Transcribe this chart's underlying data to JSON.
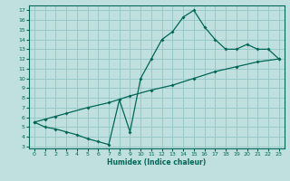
{
  "xlabel": "Humidex (Indice chaleur)",
  "bg_color": "#c0e0e0",
  "grid_color": "#98c8c8",
  "line_color": "#006655",
  "xlim": [
    -0.5,
    23.5
  ],
  "ylim": [
    2.8,
    17.5
  ],
  "xticks": [
    0,
    1,
    2,
    3,
    4,
    5,
    6,
    7,
    8,
    9,
    10,
    11,
    12,
    13,
    14,
    15,
    16,
    17,
    18,
    19,
    20,
    21,
    22,
    23
  ],
  "yticks": [
    3,
    4,
    5,
    6,
    7,
    8,
    9,
    10,
    11,
    12,
    13,
    14,
    15,
    16,
    17
  ],
  "line1_x": [
    0,
    1,
    2,
    3,
    4,
    5,
    6,
    7,
    8,
    9,
    10,
    11,
    12,
    13,
    14,
    15,
    16,
    17,
    18,
    19,
    20,
    21,
    22,
    23
  ],
  "line1_y": [
    5.5,
    5.0,
    4.8,
    4.5,
    4.2,
    3.8,
    3.5,
    3.2,
    7.8,
    4.5,
    10.0,
    12.0,
    14.0,
    14.8,
    16.3,
    17.0,
    15.3,
    14.0,
    13.0,
    13.0,
    13.5,
    13.0,
    13.0,
    12.0
  ],
  "line2_x": [
    0,
    1,
    2,
    3,
    5,
    7,
    9,
    11,
    13,
    15,
    17,
    19,
    21,
    23
  ],
  "line2_y": [
    5.5,
    5.8,
    6.1,
    6.4,
    7.0,
    7.5,
    8.2,
    8.8,
    9.3,
    10.0,
    10.7,
    11.2,
    11.7,
    12.0
  ]
}
